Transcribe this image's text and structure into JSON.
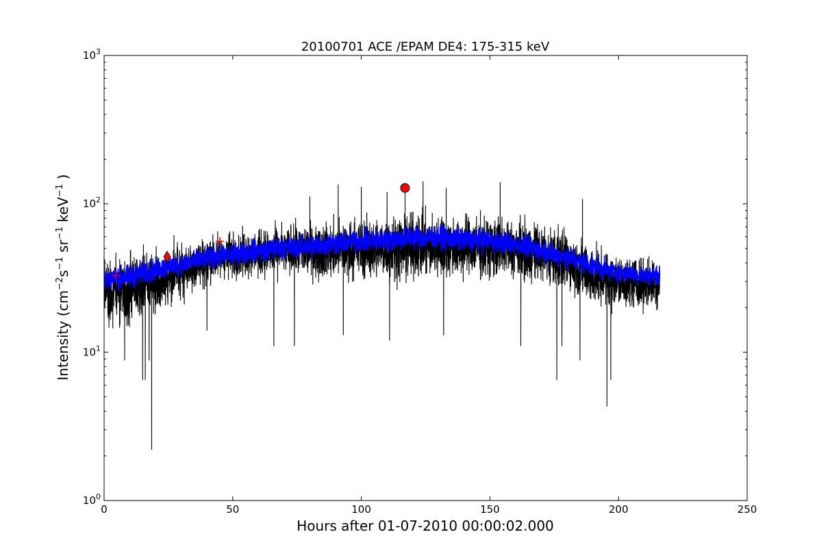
{
  "chart_data": {
    "type": "line",
    "title": "20100701 ACE /EPAM DE4: 175-315 keV",
    "xlabel": "Hours after 01-07-2010 00:00:02.000",
    "ylabel": "Intensity (cm$^{-2}$s$^{-1}$sr$^{-1}$keV$^{-1}$)",
    "ylabel_parts": {
      "prefix": "Intensity (cm",
      "sup1": "−2",
      "s": "s",
      "sup2": "−1",
      "sr": " sr",
      "sup3": "−1",
      "kev": " keV",
      "sup4": "−1",
      "suffix": " )"
    },
    "xlim": [
      0,
      250
    ],
    "ylim": [
      1,
      1000
    ],
    "yscale": "log",
    "grid": false,
    "x_ticks": [
      0,
      50,
      100,
      150,
      200,
      250
    ],
    "x_tick_labels": [
      "0",
      "50",
      "100",
      "150",
      "200",
      "250"
    ],
    "y_ticks": [
      {
        "value": 1,
        "base": "10",
        "exp": "0"
      },
      {
        "value": 10,
        "base": "10",
        "exp": "1"
      },
      {
        "value": 100,
        "base": "10",
        "exp": "2"
      },
      {
        "value": 1000,
        "base": "10",
        "exp": "3"
      }
    ],
    "series": [
      {
        "color": "#000000",
        "style": "line",
        "x_range": [
          0,
          216
        ],
        "envelope": {
          "x": [
            0,
            10,
            20,
            30,
            40,
            50,
            60,
            70,
            80,
            90,
            100,
            110,
            120,
            130,
            140,
            150,
            160,
            170,
            180,
            190,
            200,
            210,
            216
          ],
          "high": [
            52,
            56,
            62,
            64,
            70,
            74,
            76,
            82,
            88,
            92,
            98,
            100,
            104,
            102,
            100,
            98,
            94,
            88,
            78,
            62,
            52,
            50,
            50
          ],
          "low": [
            13,
            12,
            14,
            20,
            24,
            28,
            28,
            28,
            27,
            26,
            26,
            25,
            25,
            26,
            26,
            26,
            26,
            24,
            22,
            17,
            17,
            17,
            17
          ]
        },
        "dips": [
          {
            "x": 15,
            "y": 6.5
          },
          {
            "x": 16,
            "y": 6.5
          },
          {
            "x": 18.5,
            "y": 2.2
          },
          {
            "x": 195.5,
            "y": 4.3
          },
          {
            "x": 176,
            "y": 6.5
          },
          {
            "x": 197,
            "y": 6.5
          },
          {
            "x": 8,
            "y": 8.8
          },
          {
            "x": 17.5,
            "y": 8.8
          },
          {
            "x": 185,
            "y": 8.8
          },
          {
            "x": 40,
            "y": 14
          },
          {
            "x": 66,
            "y": 11
          },
          {
            "x": 74,
            "y": 11
          },
          {
            "x": 93,
            "y": 13
          },
          {
            "x": 111,
            "y": 12
          },
          {
            "x": 132,
            "y": 13
          },
          {
            "x": 162,
            "y": 11
          },
          {
            "x": 178,
            "y": 11
          }
        ],
        "spikes": [
          {
            "x": 91,
            "y": 135
          },
          {
            "x": 100,
            "y": 130
          },
          {
            "x": 110,
            "y": 120
          },
          {
            "x": 124,
            "y": 142
          },
          {
            "x": 133,
            "y": 128
          },
          {
            "x": 154,
            "y": 140
          },
          {
            "x": 117,
            "y": 120
          },
          {
            "x": 80,
            "y": 112
          },
          {
            "x": 186,
            "y": 108
          }
        ]
      },
      {
        "color": "#0000ff",
        "style": "line",
        "x_range": [
          0,
          216
        ],
        "envelope": {
          "x": [
            0,
            10,
            20,
            30,
            40,
            50,
            60,
            70,
            80,
            90,
            100,
            110,
            120,
            130,
            140,
            150,
            160,
            170,
            180,
            190,
            200,
            210,
            216
          ],
          "high": [
            40,
            42,
            46,
            50,
            54,
            58,
            62,
            64,
            68,
            70,
            72,
            74,
            78,
            76,
            74,
            72,
            68,
            62,
            56,
            48,
            42,
            40,
            40
          ],
          "low": [
            24,
            25,
            28,
            31,
            34,
            36,
            38,
            40,
            40,
            42,
            44,
            44,
            46,
            46,
            44,
            44,
            42,
            38,
            34,
            30,
            28,
            27,
            27
          ]
        }
      }
    ],
    "markers": [
      {
        "shape": "plus",
        "color": "#ff0000",
        "x": 4.5,
        "y": 33
      },
      {
        "shape": "diamond",
        "color": "#ff0000",
        "x": 24.5,
        "y": 44
      },
      {
        "shape": "plus",
        "color": "#ff0000",
        "x": 45,
        "y": 56
      },
      {
        "shape": "circle",
        "color": "#ff0000",
        "x": 117,
        "y": 128
      }
    ]
  }
}
